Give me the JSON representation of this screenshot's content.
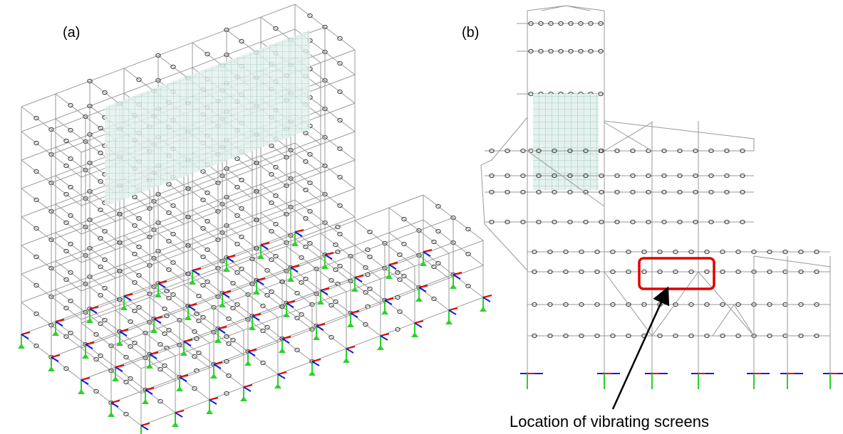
{
  "panels": [
    {
      "label": "(a)"
    },
    {
      "label": "(b)",
      "annotation": "Location of vibrating screens"
    }
  ]
}
